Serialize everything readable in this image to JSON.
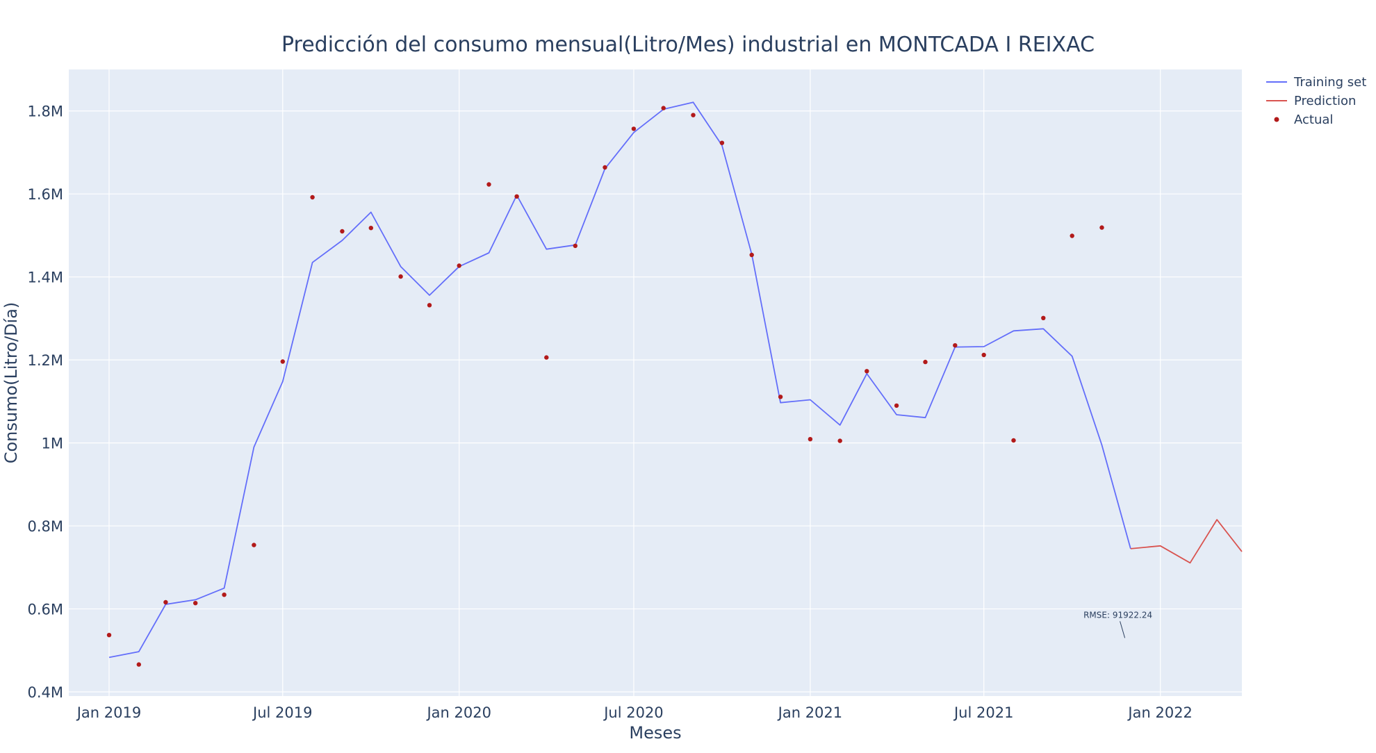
{
  "chart_data": {
    "type": "line",
    "title": "Predicción del consumo mensual(Litro/Mes) industrial en MONTCADA I REIXAC",
    "xlabel": "Meses",
    "ylabel": "Consumo(Litro/Día)",
    "xlim": [
      "2018-11-20",
      "2022-03-27"
    ],
    "ylim": [
      390000,
      1900000
    ],
    "x_ticks": [
      {
        "date": "2019-01-01",
        "label": "Jan 2019"
      },
      {
        "date": "2019-07-01",
        "label": "Jul 2019"
      },
      {
        "date": "2020-01-01",
        "label": "Jan 2020"
      },
      {
        "date": "2020-07-01",
        "label": "Jul 2020"
      },
      {
        "date": "2021-01-01",
        "label": "Jan 2021"
      },
      {
        "date": "2021-07-01",
        "label": "Jul 2021"
      },
      {
        "date": "2022-01-01",
        "label": "Jan 2022"
      }
    ],
    "y_ticks": [
      {
        "value": 400000,
        "label": "0.4M"
      },
      {
        "value": 600000,
        "label": "0.6M"
      },
      {
        "value": 800000,
        "label": "0.8M"
      },
      {
        "value": 1000000,
        "label": "1M"
      },
      {
        "value": 1200000,
        "label": "1.2M"
      },
      {
        "value": 1400000,
        "label": "1.4M"
      },
      {
        "value": 1600000,
        "label": "1.6M"
      },
      {
        "value": 1800000,
        "label": "1.8M"
      }
    ],
    "grid": true,
    "legend_position": "top-right",
    "series": [
      {
        "name": "Training set",
        "kind": "line",
        "color": "#636efa",
        "points": [
          [
            "2019-01-01",
            483000
          ],
          [
            "2019-02-01",
            497000
          ],
          [
            "2019-03-01",
            611000
          ],
          [
            "2019-04-01",
            622000
          ],
          [
            "2019-05-01",
            650000
          ],
          [
            "2019-06-01",
            990000
          ],
          [
            "2019-07-01",
            1148000
          ],
          [
            "2019-08-01",
            1435000
          ],
          [
            "2019-09-01",
            1488000
          ],
          [
            "2019-10-01",
            1556000
          ],
          [
            "2019-11-01",
            1425000
          ],
          [
            "2019-12-01",
            1356000
          ],
          [
            "2020-01-01",
            1425000
          ],
          [
            "2020-02-01",
            1458000
          ],
          [
            "2020-03-01",
            1597000
          ],
          [
            "2020-04-01",
            1467000
          ],
          [
            "2020-05-01",
            1477000
          ],
          [
            "2020-06-01",
            1661000
          ],
          [
            "2020-07-01",
            1748000
          ],
          [
            "2020-08-01",
            1804000
          ],
          [
            "2020-09-01",
            1821000
          ],
          [
            "2020-10-01",
            1717000
          ],
          [
            "2020-11-01",
            1455000
          ],
          [
            "2020-12-01",
            1097000
          ],
          [
            "2021-01-01",
            1104000
          ],
          [
            "2021-02-01",
            1043000
          ],
          [
            "2021-03-01",
            1167000
          ],
          [
            "2021-04-01",
            1068000
          ],
          [
            "2021-05-01",
            1061000
          ],
          [
            "2021-06-01",
            1231000
          ],
          [
            "2021-07-01",
            1232000
          ],
          [
            "2021-08-01",
            1270000
          ],
          [
            "2021-09-01",
            1275000
          ],
          [
            "2021-10-01",
            1209000
          ],
          [
            "2021-11-01",
            995000
          ],
          [
            "2021-12-01",
            745000
          ]
        ]
      },
      {
        "name": "Prediction",
        "kind": "line",
        "color": "#d9534f",
        "points": [
          [
            "2021-12-01",
            745000
          ],
          [
            "2022-01-01",
            752000
          ],
          [
            "2022-02-01",
            711000
          ],
          [
            "2022-03-01",
            815000
          ],
          [
            "2022-03-27",
            738000
          ]
        ]
      },
      {
        "name": "Actual",
        "kind": "markers",
        "color": "#b21a1a",
        "points": [
          [
            "2019-01-01",
            537000
          ],
          [
            "2019-02-01",
            466000
          ],
          [
            "2019-03-01",
            616000
          ],
          [
            "2019-04-01",
            614000
          ],
          [
            "2019-05-01",
            634000
          ],
          [
            "2019-06-01",
            754000
          ],
          [
            "2019-07-01",
            1196000
          ],
          [
            "2019-08-01",
            1592000
          ],
          [
            "2019-09-01",
            1510000
          ],
          [
            "2019-10-01",
            1518000
          ],
          [
            "2019-11-01",
            1401000
          ],
          [
            "2019-12-01",
            1332000
          ],
          [
            "2020-01-01",
            1427000
          ],
          [
            "2020-02-01",
            1623000
          ],
          [
            "2020-03-01",
            1594000
          ],
          [
            "2020-04-01",
            1206000
          ],
          [
            "2020-05-01",
            1475000
          ],
          [
            "2020-06-01",
            1664000
          ],
          [
            "2020-07-01",
            1757000
          ],
          [
            "2020-08-01",
            1807000
          ],
          [
            "2020-09-01",
            1790000
          ],
          [
            "2020-10-01",
            1723000
          ],
          [
            "2020-11-01",
            1453000
          ],
          [
            "2020-12-01",
            1111000
          ],
          [
            "2021-01-01",
            1009000
          ],
          [
            "2021-02-01",
            1005000
          ],
          [
            "2021-03-01",
            1173000
          ],
          [
            "2021-04-01",
            1090000
          ],
          [
            "2021-05-01",
            1195000
          ],
          [
            "2021-06-01",
            1235000
          ],
          [
            "2021-07-01",
            1212000
          ],
          [
            "2021-08-01",
            1006000
          ],
          [
            "2021-09-01",
            1301000
          ],
          [
            "2021-10-01",
            1499000
          ],
          [
            "2021-11-01",
            1519000
          ]
        ]
      }
    ],
    "annotations": [
      {
        "text": "RMSE: 91922.24",
        "date": "2021-11-25",
        "value": 530000
      }
    ]
  }
}
